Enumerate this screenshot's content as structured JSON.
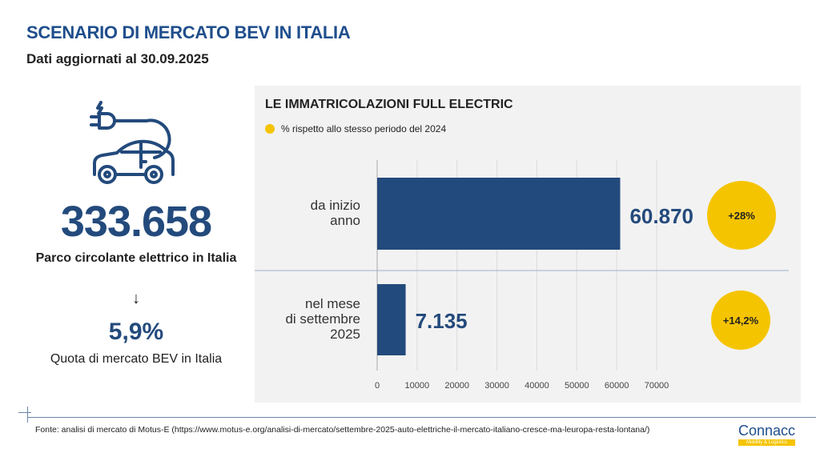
{
  "header": {
    "title": "SCENARIO DI MERCATO BEV IN ITALIA",
    "subtitle": "Dati aggiornati al 30.09.2025"
  },
  "left": {
    "icon": "electric-car-plug-icon",
    "fleet_value": "333.658",
    "fleet_label": "Parco circolante elettrico in Italia",
    "arrow": "↓",
    "share_value": "5,9%",
    "share_label": "Quota di mercato BEV in Italia"
  },
  "chart_data": {
    "type": "bar",
    "orientation": "horizontal",
    "title": "LE IMMATRICOLAZIONI FULL ELECTRIC",
    "legend": "% rispetto allo stesso periodo del 2024",
    "categories": [
      "da inizio anno",
      "nel mese di settembre 2025"
    ],
    "values": [
      60870,
      7135
    ],
    "value_labels": [
      "60.870",
      "7.135"
    ],
    "yoy_labels": [
      "+28%",
      "+14,2%"
    ],
    "xlim": [
      0,
      70000
    ],
    "xticks": [
      0,
      10000,
      20000,
      30000,
      40000,
      50000,
      60000,
      70000
    ],
    "grid": true
  },
  "footer": {
    "source": "Fonte: analisi di mercato di Motus-E (https://www.motus-e.org/analisi-di-mercato/settembre-2025-auto-elettriche-il-mercato-italiano-cresce-ma-leuropa-resta-lontana/)",
    "logo": "Connacc",
    "logo_sub": "Mobility & Logistics"
  },
  "colors": {
    "navy": "#234a7c",
    "yellow": "#f5c400",
    "panel": "#f2f2f2"
  }
}
